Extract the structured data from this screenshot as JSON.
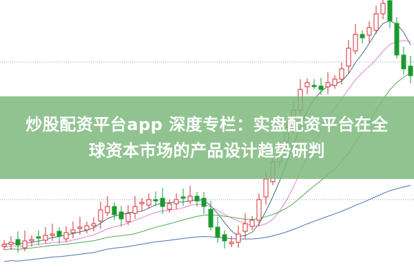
{
  "banner": {
    "title_line1": "炒股配资平台app 深度专栏：实盘配资平台在全",
    "title_line2": "球资本市场的产品设计趋势研判"
  },
  "chart_data": {
    "type": "candlestick",
    "closes": [
      45,
      48,
      44,
      50,
      52,
      55,
      58,
      60,
      57,
      62,
      66,
      70,
      72,
      75,
      95,
      100,
      88,
      82,
      90,
      100,
      106,
      110,
      108,
      100,
      104,
      110,
      112,
      115,
      108,
      100,
      70,
      55,
      50,
      48,
      60,
      75,
      80,
      110,
      140,
      165,
      190,
      215,
      240,
      270,
      280,
      275,
      270,
      280,
      285,
      300,
      330,
      350,
      345,
      360,
      380,
      395,
      370,
      320,
      300,
      290
    ],
    "moving_averages": [
      5,
      10,
      20,
      60
    ],
    "colors": {
      "up": "#d9262c",
      "down": "#1a9a2e",
      "ma5": "#3a6e6e",
      "ma10": "#e37fd4",
      "ma20": "#4aa84a",
      "ma60": "#4a6fb0",
      "grid": "#999999",
      "banner": "#7db97d"
    }
  }
}
